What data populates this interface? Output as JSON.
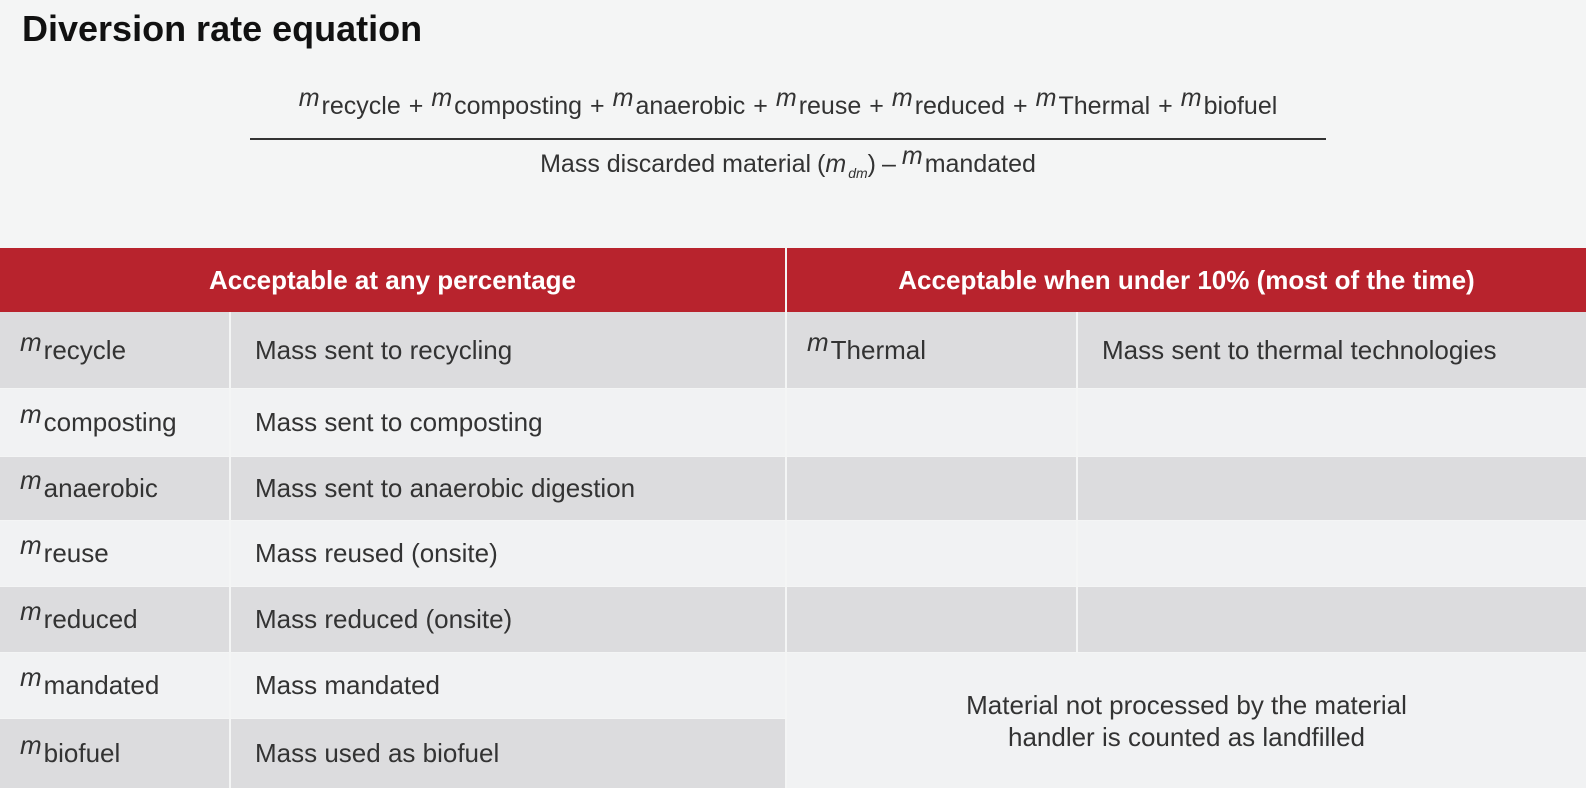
{
  "title": "Diversion rate equation",
  "equation": {
    "numerator": {
      "operator": "+",
      "terms": [
        {
          "symbol": "m",
          "subscript": "recycle"
        },
        {
          "symbol": "m",
          "subscript": "composting"
        },
        {
          "symbol": "m",
          "subscript": "anaerobic"
        },
        {
          "symbol": "m",
          "subscript": "reuse"
        },
        {
          "symbol": "m",
          "subscript": "reduced"
        },
        {
          "symbol": "m",
          "subscript": "Thermal"
        },
        {
          "symbol": "m",
          "subscript": "biofuel"
        }
      ]
    },
    "denominator": {
      "text": "Mass discarded material",
      "open": "(",
      "symbol": "m",
      "subscript": "dm",
      "close": ")",
      "operator": "–",
      "term": {
        "symbol": "m",
        "subscript": "mandated"
      }
    }
  },
  "table": {
    "headers": [
      "Acceptable at any percentage",
      "Acceptable when under 10% (most of the time)"
    ],
    "left_rows": [
      {
        "symbol": "m",
        "subscript": "recycle",
        "description": "Mass sent to recycling"
      },
      {
        "symbol": "m",
        "subscript": "composting",
        "description": "Mass sent to composting"
      },
      {
        "symbol": "m",
        "subscript": "anaerobic",
        "description": "Mass sent to anaerobic digestion"
      },
      {
        "symbol": "m",
        "subscript": "reuse",
        "description": "Mass reused (onsite)"
      },
      {
        "symbol": "m",
        "subscript": "reduced",
        "description": "Mass reduced (onsite)"
      },
      {
        "symbol": "m",
        "subscript": "mandated",
        "description": "Mass mandated"
      },
      {
        "symbol": "m",
        "subscript": "biofuel",
        "description": "Mass used as biofuel"
      }
    ],
    "right_rows": [
      {
        "symbol": "m",
        "subscript": "Thermal",
        "description": "Mass sent to thermal technologies"
      }
    ],
    "note": "Material not processed by the material handler is counted as landfilled"
  }
}
